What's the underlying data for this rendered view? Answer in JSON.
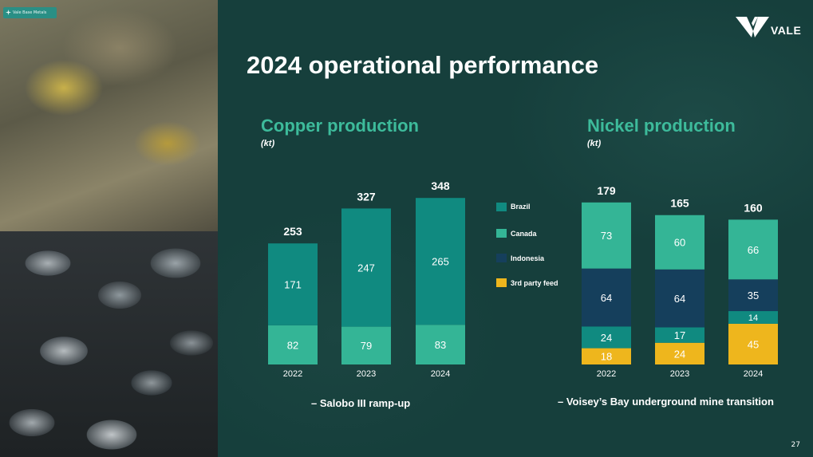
{
  "badge": {
    "label": "Vale Base Metals"
  },
  "logo": {
    "text": "VALE"
  },
  "title": "2024 operational performance",
  "copper": {
    "title": "Copper production",
    "unit": "(kt)",
    "note": "– Salobo III ramp-up"
  },
  "nickel": {
    "title": "Nickel production",
    "unit": "(kt)",
    "note": "– Voisey’s Bay underground mine transition"
  },
  "legend": [
    {
      "label": "Brazil",
      "color": "#108a80"
    },
    {
      "label": "Canada",
      "color": "#34b596"
    },
    {
      "label": "Indonesia",
      "color": "#153f5c"
    },
    {
      "label": "3rd party feed",
      "color": "#eeb61d"
    }
  ],
  "page_number": "27",
  "colors": {
    "brazil": "#108a80",
    "canada": "#34b596",
    "indonesia": "#153f5c",
    "third_party": "#eeb61d",
    "background": "#163f3c",
    "accent": "#3dbb9b"
  },
  "chart_data": [
    {
      "type": "bar",
      "stacked": true,
      "title": "Copper production",
      "ylabel": "(kt)",
      "categories": [
        "2022",
        "2023",
        "2024"
      ],
      "series": [
        {
          "name": "Canada",
          "values": [
            82,
            79,
            83
          ],
          "color": "#34b596"
        },
        {
          "name": "Brazil",
          "values": [
            171,
            247,
            265
          ],
          "color": "#108a80"
        }
      ],
      "totals": [
        253,
        327,
        348
      ],
      "ylim": [
        0,
        380
      ]
    },
    {
      "type": "bar",
      "stacked": true,
      "title": "Nickel production",
      "ylabel": "(kt)",
      "categories": [
        "2022",
        "2023",
        "2024"
      ],
      "series": [
        {
          "name": "3rd party feed",
          "values": [
            18,
            24,
            45
          ],
          "color": "#eeb61d"
        },
        {
          "name": "Brazil",
          "values": [
            24,
            17,
            14
          ],
          "color": "#108a80"
        },
        {
          "name": "Indonesia",
          "values": [
            64,
            64,
            35
          ],
          "color": "#153f5c"
        },
        {
          "name": "Canada",
          "values": [
            73,
            60,
            66
          ],
          "color": "#34b596"
        }
      ],
      "totals": [
        179,
        165,
        160
      ],
      "ylim": [
        0,
        200
      ]
    }
  ]
}
